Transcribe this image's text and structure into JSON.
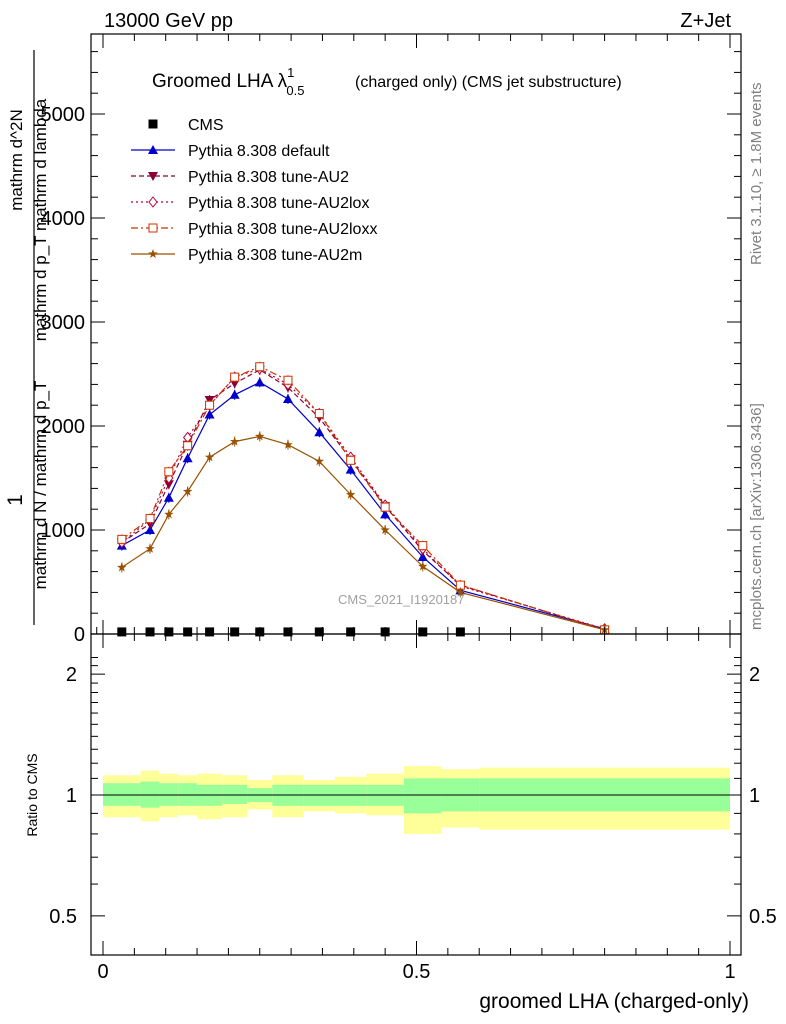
{
  "header": {
    "left": "13000 GeV pp",
    "right": "Z+Jet"
  },
  "side": {
    "rivet": "Rivet 3.1.10, ≥ 1.8M events",
    "mcplots": "mcplots.cern.ch [arXiv:1306.3436]"
  },
  "title": {
    "main": "Groomed LHA ",
    "lambda": "λ",
    "sup": "1",
    "sub": "0.5",
    "rest": "(charged only) (CMS jet substructure)"
  },
  "watermark": "CMS_2021_I1920187",
  "colors": {
    "ratio_inner": "#99ff99",
    "ratio_outer": "#ffff99",
    "default": "#0000cc",
    "au2": "#8b0033",
    "au2lox": "#b3003a",
    "au2loxx": "#cc3300",
    "au2m": "#995200"
  },
  "chart_data": {
    "type": "line",
    "xlabel": "groomed LHA (charged-only)",
    "ylabel": {
      "numerator": "1",
      "denominator": "mathrm d N / mathrm d p_T",
      "top_line1": "mathrm d^2N",
      "top_line2": "mathrm d p_T mathrm d lambda"
    },
    "xlim": [
      0,
      1
    ],
    "ylim": [
      0,
      5800
    ],
    "x_ticks": [
      "0",
      "0.5",
      "1"
    ],
    "y_ticks": [
      "0",
      "1000",
      "2000",
      "3000",
      "4000",
      "5000"
    ],
    "x": [
      0.03,
      0.075,
      0.105,
      0.135,
      0.17,
      0.21,
      0.25,
      0.295,
      0.345,
      0.395,
      0.45,
      0.51,
      0.57,
      0.8
    ],
    "series": [
      {
        "name": "CMS",
        "marker": "square",
        "values": [
          20,
          20,
          20,
          20,
          20,
          20,
          20,
          20,
          20,
          20,
          20,
          20,
          20,
          null
        ]
      },
      {
        "name": "Pythia 8.308 default",
        "marker": "triangle-up",
        "dash": "solid",
        "values": [
          850,
          1000,
          1310,
          1690,
          2110,
          2300,
          2420,
          2260,
          1940,
          1580,
          1150,
          740,
          420,
          50
        ]
      },
      {
        "name": "Pythia 8.308 tune-AU2",
        "marker": "triangle-down",
        "dash": "dash",
        "values": [
          880,
          1060,
          1440,
          1820,
          2250,
          2410,
          2540,
          2370,
          2080,
          1680,
          1230,
          800,
          470,
          40
        ]
      },
      {
        "name": "Pythia 8.308 tune-AU2lox",
        "marker": "diamond-open",
        "dash": "dot",
        "values": [
          880,
          1100,
          1500,
          1890,
          2200,
          2470,
          2550,
          2400,
          2120,
          1700,
          1240,
          820,
          460,
          50
        ]
      },
      {
        "name": "Pythia 8.308 tune-AU2loxx",
        "marker": "square-open",
        "dash": "dashdot",
        "values": [
          910,
          1110,
          1560,
          1810,
          2200,
          2470,
          2570,
          2440,
          2120,
          1670,
          1220,
          850,
          470,
          40
        ]
      },
      {
        "name": "Pythia 8.308 tune-AU2m",
        "marker": "star",
        "dash": "solid",
        "values": [
          640,
          820,
          1150,
          1370,
          1700,
          1850,
          1900,
          1820,
          1660,
          1340,
          1000,
          650,
          400,
          40
        ]
      }
    ],
    "ratio": {
      "ylabel": "Ratio to CMS",
      "y_ticks": [
        "0.5",
        "1",
        "2"
      ],
      "bins": [
        0.0,
        0.06,
        0.09,
        0.12,
        0.15,
        0.19,
        0.23,
        0.27,
        0.32,
        0.37,
        0.42,
        0.48,
        0.54,
        0.6,
        1.0
      ],
      "inner_up": [
        1.07,
        1.08,
        1.07,
        1.07,
        1.06,
        1.06,
        1.04,
        1.06,
        1.06,
        1.06,
        1.06,
        1.1,
        1.1,
        1.1
      ],
      "inner_dn": [
        0.94,
        0.93,
        0.94,
        0.94,
        0.94,
        0.95,
        0.96,
        0.94,
        0.94,
        0.94,
        0.94,
        0.9,
        0.91,
        0.91
      ],
      "outer_up": [
        1.12,
        1.15,
        1.13,
        1.12,
        1.13,
        1.12,
        1.09,
        1.12,
        1.09,
        1.11,
        1.13,
        1.18,
        1.16,
        1.17
      ],
      "outer_dn": [
        0.88,
        0.86,
        0.88,
        0.89,
        0.87,
        0.88,
        0.92,
        0.88,
        0.91,
        0.9,
        0.89,
        0.8,
        0.83,
        0.82
      ]
    }
  }
}
